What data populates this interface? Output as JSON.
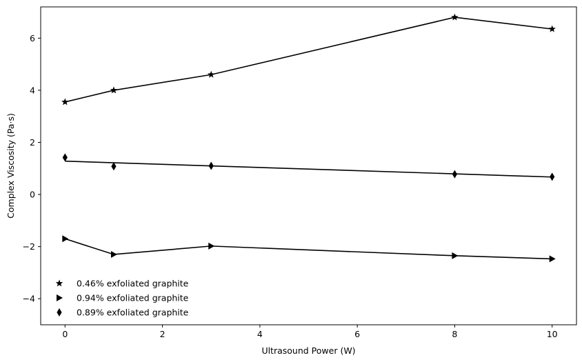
{
  "chart_data": {
    "type": "line",
    "title": "",
    "xlabel": "Ultrasound Power (W)",
    "ylabel": "Complex Viscosity (Pa·s)",
    "xlim": [
      -0.5,
      10.5
    ],
    "ylim": [
      -5,
      7.2
    ],
    "xticks": [
      0,
      2,
      4,
      6,
      8,
      10
    ],
    "yticks": [
      -4,
      -2,
      0,
      2,
      4,
      6
    ],
    "xtick_labels": [
      "0",
      "2",
      "4",
      "6",
      "8",
      "10"
    ],
    "ytick_labels": [
      "−4",
      "−2",
      "0",
      "2",
      "4",
      "6"
    ],
    "grid": false,
    "legend_position": "bottom-left",
    "series": [
      {
        "name": "0.46% exfoliated graphite",
        "marker": "star",
        "x": [
          0,
          1,
          3,
          8,
          10
        ],
        "y": [
          3.55,
          4.0,
          4.6,
          6.8,
          6.35
        ],
        "fit_x": [
          0,
          1,
          3,
          8,
          10
        ],
        "fit_y": [
          3.55,
          4.0,
          4.6,
          6.8,
          6.35
        ]
      },
      {
        "name": "0.94% exfoliated graphite",
        "marker": "triangle-right",
        "x": [
          0,
          1,
          3,
          8,
          10
        ],
        "y": [
          -1.7,
          -2.3,
          -1.98,
          -2.35,
          -2.47
        ],
        "fit_x": [
          0,
          1,
          3,
          8,
          10
        ],
        "fit_y": [
          -1.7,
          -2.3,
          -1.98,
          -2.35,
          -2.47
        ]
      },
      {
        "name": "0.89% exfoliated graphite",
        "marker": "thin-diamond",
        "x": [
          0,
          1,
          3,
          8,
          10
        ],
        "y": [
          1.42,
          1.08,
          1.1,
          0.78,
          0.68
        ],
        "fit_x": [
          0,
          10
        ],
        "fit_y": [
          1.28,
          0.67
        ]
      }
    ],
    "line_color": "#000000",
    "marker_color": "#000000"
  }
}
